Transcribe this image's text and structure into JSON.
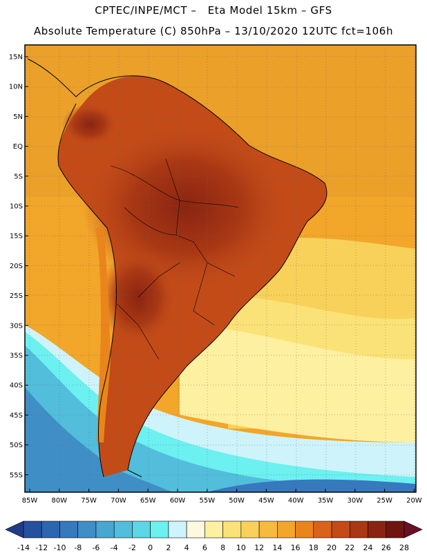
{
  "title_line1": "CPTEC/INPE/MCT –   Eta Model 15km – GFS",
  "title_line2": "Absolute Temperature (C) 850hPa – 13/10/2020 12UTC fct=106h",
  "lat_labels": [
    "15N",
    "10N",
    "5N",
    "EQ",
    "5S",
    "10S",
    "15S",
    "20S",
    "25S",
    "30S",
    "35S",
    "40S",
    "45S",
    "50S",
    "55S"
  ],
  "lon_labels": [
    "85W",
    "80W",
    "75W",
    "70W",
    "65W",
    "60W",
    "55W",
    "50W",
    "45W",
    "40W",
    "35W",
    "30W",
    "25W",
    "20W"
  ],
  "colorbar": {
    "labels": [
      "-14",
      "-12",
      "-10",
      "-8",
      "-6",
      "-4",
      "-2",
      "0",
      "2",
      "4",
      "6",
      "8",
      "10",
      "12",
      "14",
      "16",
      "18",
      "20",
      "22",
      "24",
      "26",
      "28"
    ],
    "colors": [
      "#1f3c88",
      "#25509e",
      "#2d66b0",
      "#3679bd",
      "#3f8fc6",
      "#48a6d1",
      "#52bedc",
      "#5ed6e6",
      "#6cf0f0",
      "#cff3fa",
      "#fdf8e0",
      "#fdf0a0",
      "#fbe278",
      "#f8d15a",
      "#f5bb3e",
      "#f2a62a",
      "#e9851c",
      "#d9631a",
      "#c24b18",
      "#a93814",
      "#8a2412",
      "#6e1510",
      "#6a0f24"
    ]
  }
}
